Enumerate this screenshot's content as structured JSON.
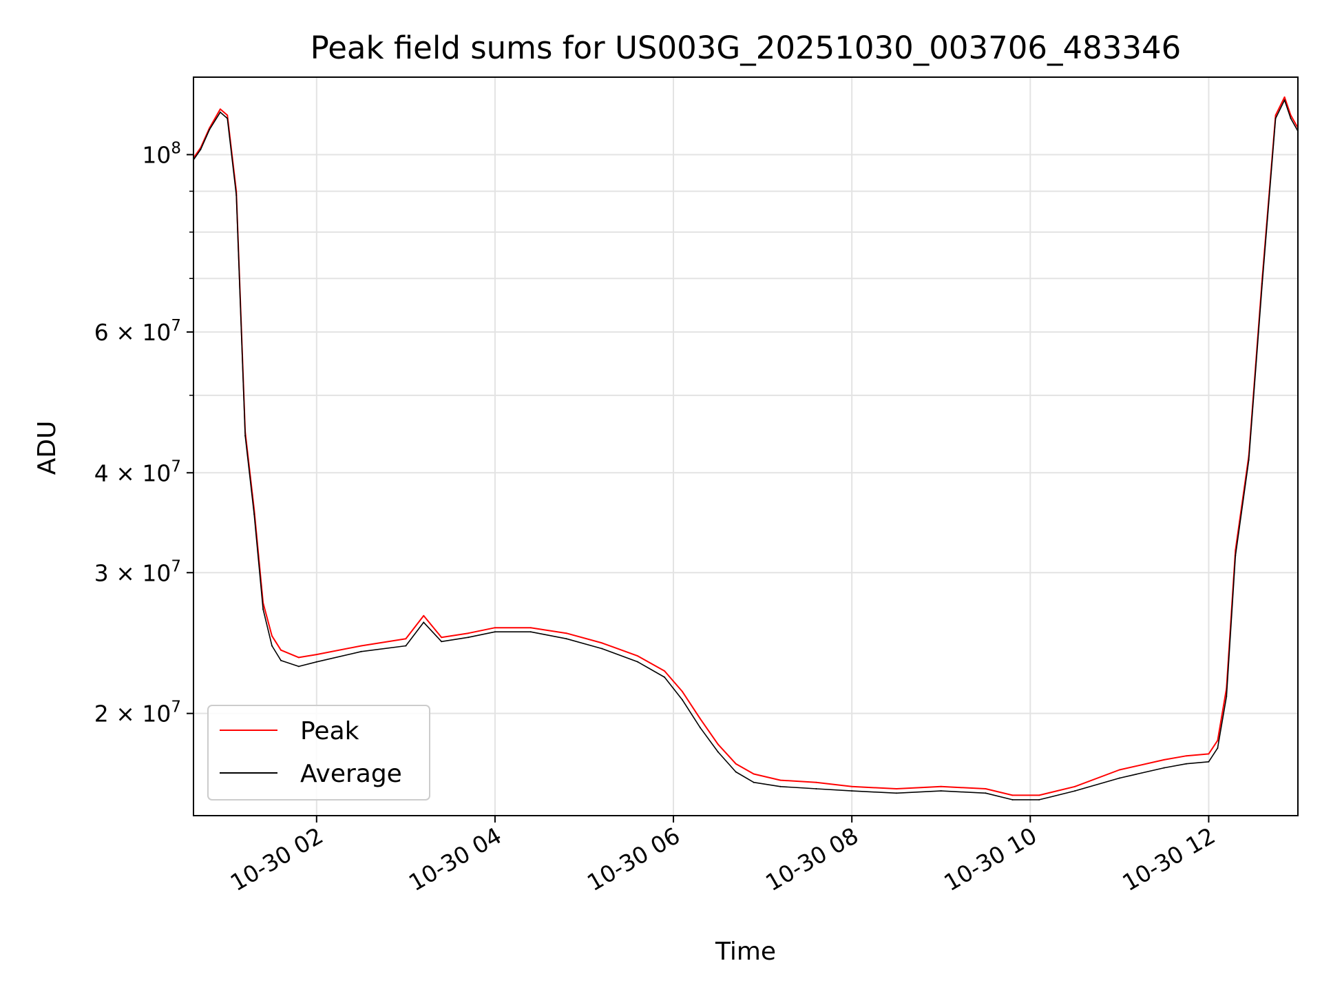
{
  "chart_data": {
    "type": "line",
    "title": "Peak field sums for US003G_20251030_003706_483346",
    "xlabel": "Time",
    "ylabel": "ADU",
    "yscale": "log",
    "ylim": [
      14900000,
      125000000
    ],
    "xlim_hours": [
      0.62,
      13.0
    ],
    "grid": true,
    "legend_position": "lower-left",
    "x_ticks": [
      {
        "hour": 2,
        "label": "10-30 02"
      },
      {
        "hour": 4,
        "label": "10-30 04"
      },
      {
        "hour": 6,
        "label": "10-30 06"
      },
      {
        "hour": 8,
        "label": "10-30 08"
      },
      {
        "hour": 10,
        "label": "10-30 10"
      },
      {
        "hour": 12,
        "label": "10-30 12"
      }
    ],
    "y_ticks": [
      {
        "value": 20000000,
        "base": "2 × 10",
        "exp": "7"
      },
      {
        "value": 30000000,
        "base": "3 × 10",
        "exp": "7"
      },
      {
        "value": 40000000,
        "base": "4 × 10",
        "exp": "7"
      },
      {
        "value": 60000000,
        "base": "6 × 10",
        "exp": "7"
      },
      {
        "value": 100000000,
        "base": "10",
        "exp": "8"
      }
    ],
    "y_minor_ticks": [
      50000000,
      70000000,
      80000000,
      90000000
    ],
    "series": [
      {
        "name": "Peak",
        "color": "#ff0000",
        "x": [
          0.62,
          0.7,
          0.8,
          0.92,
          1.0,
          1.1,
          1.2,
          1.3,
          1.4,
          1.5,
          1.6,
          1.8,
          2.0,
          2.5,
          3.0,
          3.2,
          3.4,
          3.7,
          4.0,
          4.4,
          4.8,
          5.2,
          5.6,
          5.9,
          6.1,
          6.3,
          6.5,
          6.7,
          6.9,
          7.2,
          7.6,
          8.0,
          8.5,
          9.0,
          9.5,
          9.8,
          10.1,
          10.5,
          11.0,
          11.5,
          11.75,
          12.0,
          12.1,
          12.2,
          12.3,
          12.45,
          12.6,
          12.75,
          12.85,
          12.92,
          13.0
        ],
        "values": [
          99000000,
          102000000,
          108000000,
          114000000,
          112000000,
          90000000,
          45000000,
          36000000,
          27500000,
          25000000,
          24000000,
          23500000,
          23700000,
          24300000,
          24800000,
          26500000,
          24900000,
          25200000,
          25600000,
          25600000,
          25200000,
          24500000,
          23600000,
          22600000,
          21300000,
          19700000,
          18300000,
          17300000,
          16800000,
          16500000,
          16400000,
          16200000,
          16100000,
          16200000,
          16100000,
          15800000,
          15800000,
          16200000,
          17000000,
          17500000,
          17700000,
          17800000,
          18500000,
          21500000,
          32000000,
          42000000,
          70000000,
          112000000,
          118000000,
          112000000,
          108000000
        ]
      },
      {
        "name": "Average",
        "color": "#000000",
        "x": [
          0.62,
          0.7,
          0.8,
          0.92,
          1.0,
          1.1,
          1.2,
          1.3,
          1.4,
          1.5,
          1.6,
          1.8,
          2.0,
          2.5,
          3.0,
          3.2,
          3.4,
          3.7,
          4.0,
          4.4,
          4.8,
          5.2,
          5.6,
          5.9,
          6.1,
          6.3,
          6.5,
          6.7,
          6.9,
          7.2,
          7.6,
          8.0,
          8.5,
          9.0,
          9.5,
          9.8,
          10.1,
          10.5,
          11.0,
          11.5,
          11.75,
          12.0,
          12.1,
          12.2,
          12.3,
          12.45,
          12.6,
          12.75,
          12.85,
          12.92,
          13.0
        ],
        "values": [
          98500000,
          101500000,
          107500000,
          113000000,
          111000000,
          89000000,
          44500000,
          35500000,
          27000000,
          24300000,
          23300000,
          22900000,
          23200000,
          23900000,
          24300000,
          26000000,
          24600000,
          24900000,
          25300000,
          25300000,
          24800000,
          24100000,
          23200000,
          22200000,
          20800000,
          19200000,
          17900000,
          16900000,
          16400000,
          16200000,
          16100000,
          16000000,
          15900000,
          16000000,
          15900000,
          15600000,
          15600000,
          16000000,
          16600000,
          17100000,
          17300000,
          17400000,
          18100000,
          21000000,
          31500000,
          41500000,
          69000000,
          111000000,
          117000000,
          111000000,
          107000000
        ]
      }
    ]
  }
}
